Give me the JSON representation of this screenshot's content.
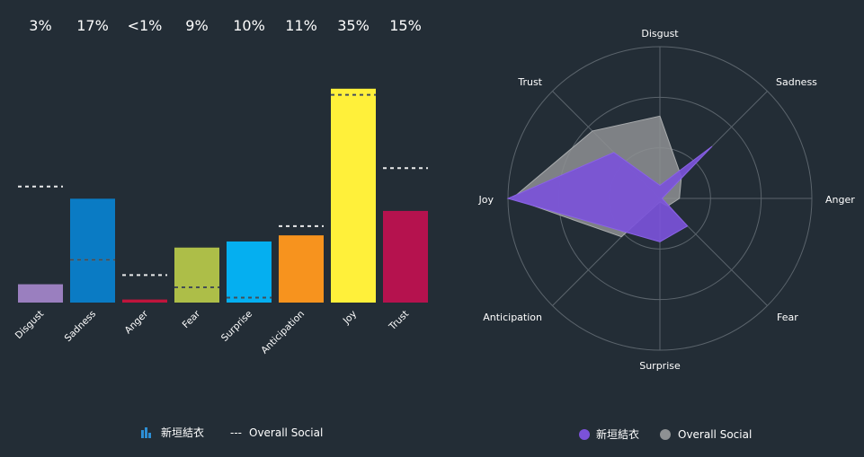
{
  "chart_data": [
    {
      "type": "bar",
      "categories": [
        "Disgust",
        "Sadness",
        "Anger",
        "Fear",
        "Surprise",
        "Anticipation",
        "Joy",
        "Trust"
      ],
      "value_labels": [
        "3%",
        "17%",
        "<1%",
        "9%",
        "10%",
        "11%",
        "35%",
        "15%"
      ],
      "series": [
        {
          "name": "新垣結衣",
          "values": [
            3,
            17,
            0.5,
            9,
            10,
            11,
            35,
            15
          ],
          "style": "bars"
        },
        {
          "name": "Overall Social",
          "values": [
            19,
            7,
            4.5,
            2.5,
            0.8,
            12.5,
            34,
            22
          ],
          "style": "dashed"
        }
      ],
      "bar_colors": [
        "#9a7fbf",
        "#0a7bc4",
        "#c0143c",
        "#adbe48",
        "#05aff0",
        "#f7931e",
        "#fff03a",
        "#b5124e"
      ],
      "ylim": [
        0,
        36
      ],
      "legend": [
        "新垣結衣",
        "Overall Social"
      ],
      "legend_position": "bottom"
    },
    {
      "type": "radar",
      "axes": [
        "Disgust",
        "Sadness",
        "Anger",
        "Fear",
        "Surprise",
        "Anticipation",
        "Joy",
        "Trust"
      ],
      "series": [
        {
          "name": "新垣結衣",
          "values": [
            3,
            17,
            0.5,
            9,
            10,
            11,
            35,
            15
          ],
          "color": "#7b52d9"
        },
        {
          "name": "Overall Social",
          "values": [
            19,
            7,
            4.5,
            2.5,
            0.8,
            12.5,
            34,
            22
          ],
          "color": "#8e9193"
        }
      ],
      "rmax": 35,
      "rings": 3,
      "legend": [
        "新垣結衣",
        "Overall Social"
      ],
      "legend_position": "bottom"
    }
  ],
  "colors": {
    "background": "#232d36",
    "grid": "#5b646c",
    "dashed_line": "#ffffff",
    "text": "#ffffff"
  },
  "legend_icons": {
    "bar_series": "bar-chart-icon",
    "line_series": "dashed-line-icon",
    "radar_series_1": "purple-dot-icon",
    "radar_series_2": "gray-dot-icon"
  },
  "legend_dashes": "---"
}
